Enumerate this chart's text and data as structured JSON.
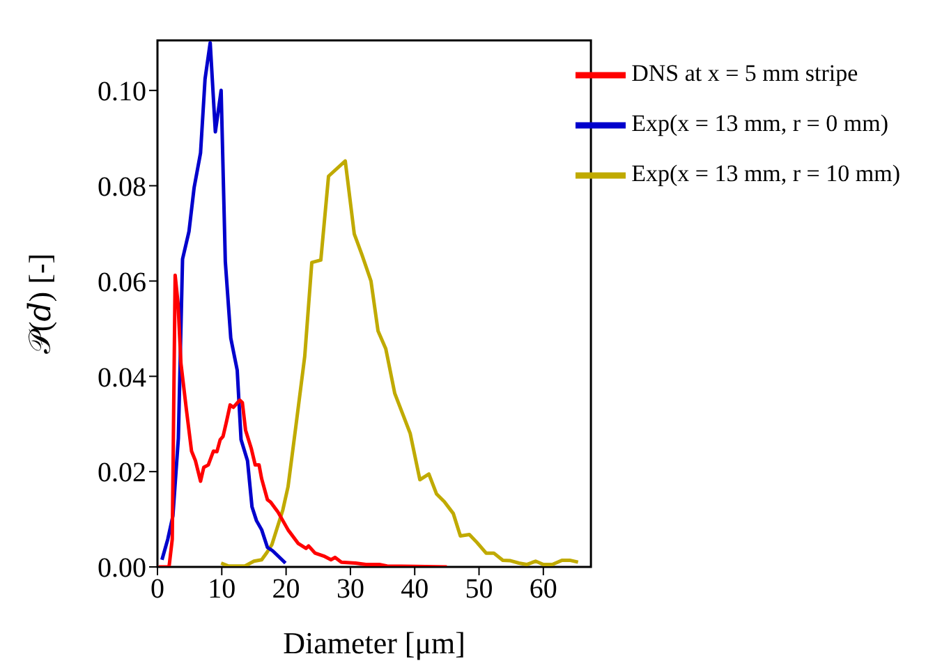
{
  "chart_data": {
    "type": "line",
    "xlabel": "Diameter [μm]",
    "ylabel": "𝒫(𝑑) [-]",
    "xlim": [
      0,
      67.4
    ],
    "ylim": [
      0,
      0.1105
    ],
    "xticks": [
      0,
      10,
      20,
      30,
      40,
      50,
      60
    ],
    "yticks": [
      {
        "value": 0,
        "label": "0.00"
      },
      {
        "value": 0.02,
        "label": "0.02"
      },
      {
        "value": 0.04,
        "label": "0.04"
      },
      {
        "value": 0.06,
        "label": "0.06"
      },
      {
        "value": 0.08,
        "label": "0.08"
      },
      {
        "value": 0.1,
        "label": "0.10"
      }
    ],
    "grid": false,
    "legend": "top right",
    "series": [
      {
        "name": "Exp(x = 13 mm, r = 10 mm)",
        "color": "#c0aa00",
        "x": [
          9.9,
          11,
          13.6,
          15,
          16.2,
          17,
          17.8,
          19.5,
          20.3,
          21.5,
          22.9,
          24,
          25.4,
          26.6,
          29.2,
          30.6,
          31.8,
          33.2,
          34.3,
          35.5,
          36.9,
          39.3,
          40.8,
          42.2,
          43.4,
          44.6,
          46,
          47.1,
          48.5,
          49.7,
          51.1,
          52.3,
          53.7,
          54.9,
          56.2,
          57.4,
          58.8,
          60,
          61.4,
          62.9,
          64.1,
          65.4
        ],
        "values": [
          0.0008,
          0.0002,
          0.0002,
          0.0012,
          0.0015,
          0.003,
          0.0047,
          0.012,
          0.0168,
          0.0293,
          0.0442,
          0.0639,
          0.0644,
          0.082,
          0.0852,
          0.0699,
          0.0655,
          0.06,
          0.0495,
          0.0458,
          0.0364,
          0.028,
          0.0183,
          0.0195,
          0.0153,
          0.0137,
          0.0112,
          0.0065,
          0.0068,
          0.0051,
          0.0029,
          0.0029,
          0.0014,
          0.0013,
          0.0008,
          0.0005,
          0.0012,
          0.0005,
          0.0005,
          0.0014,
          0.0014,
          0.001
        ]
      },
      {
        "name": "Exp(x = 13 mm, r = 0 mm)",
        "color": "#0000cc",
        "x": [
          0.7,
          1.6,
          2.4,
          3.25,
          3.9,
          4.9,
          5.7,
          6.7,
          7.4,
          8.2,
          9,
          9.9,
          10.55,
          11.4,
          12.4,
          13,
          14,
          14.7,
          15.4,
          16.2,
          17.1,
          17.9,
          19.9
        ],
        "values": [
          0.0015,
          0.0058,
          0.0107,
          0.027,
          0.0646,
          0.0704,
          0.0796,
          0.0869,
          0.1024,
          0.11,
          0.0913,
          0.1,
          0.0641,
          0.048,
          0.0413,
          0.0267,
          0.0223,
          0.0126,
          0.0097,
          0.0078,
          0.0041,
          0.0034,
          0.0008
        ]
      },
      {
        "name": "DNS at x = 5 mm stripe",
        "color": "#ff0000",
        "x": [
          0.2,
          1.8,
          2.3,
          2.75,
          3.2,
          3.65,
          4.5,
          5.3,
          5.9,
          6.7,
          7.2,
          7.9,
          8.7,
          9.25,
          9.75,
          10.2,
          10.75,
          11.3,
          11.8,
          12.8,
          13.2,
          13.7,
          14.6,
          15.2,
          15.8,
          16.2,
          17.1,
          17.6,
          18.7,
          20.3,
          21.9,
          23.1,
          23.5,
          24.5,
          26,
          27,
          27.6,
          28.6,
          30.8,
          32.4,
          34.5,
          35.7,
          40,
          45
        ],
        "values": [
          0,
          0,
          0.0058,
          0.0612,
          0.0553,
          0.0427,
          0.033,
          0.0243,
          0.0223,
          0.018,
          0.0209,
          0.0214,
          0.0243,
          0.0242,
          0.0267,
          0.0274,
          0.0306,
          0.034,
          0.0335,
          0.035,
          0.0345,
          0.0287,
          0.0248,
          0.0214,
          0.0214,
          0.0185,
          0.0141,
          0.0136,
          0.0116,
          0.0078,
          0.0049,
          0.0039,
          0.0044,
          0.0029,
          0.0022,
          0.0015,
          0.002,
          0.001,
          0.0008,
          0.0005,
          0.0005,
          0.0002,
          0.0001,
          0
        ]
      }
    ]
  }
}
